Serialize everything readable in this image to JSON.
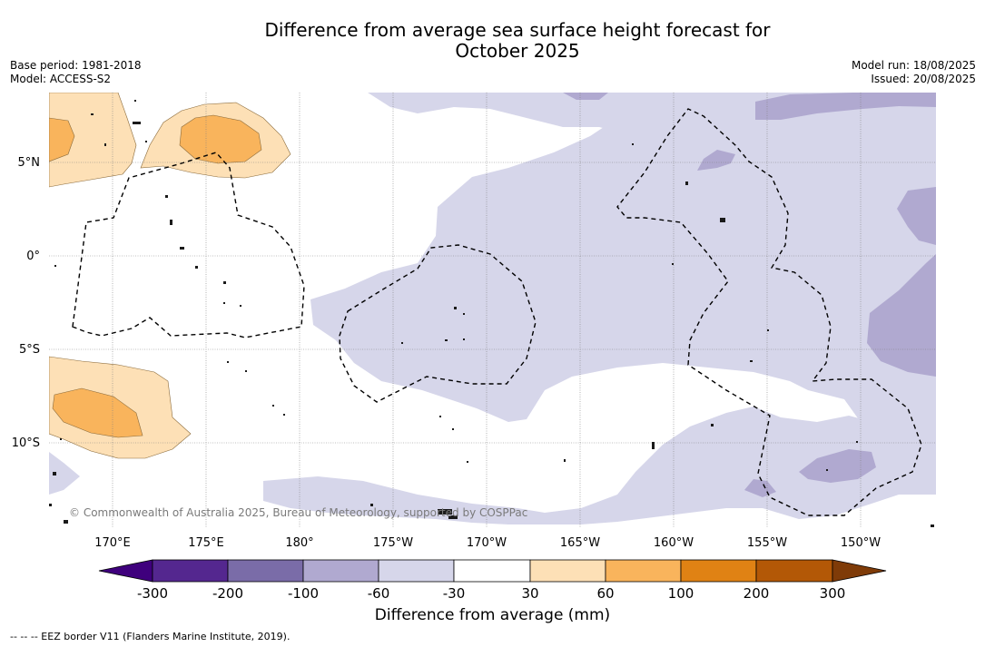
{
  "title_line1": "Difference from average sea surface height forecast for",
  "title_line2": "October 2025",
  "meta_left": {
    "base_period": "Base period: 1981-2018",
    "model": "Model: ACCESS-S2"
  },
  "meta_right": {
    "model_run": "Model run: 18/08/2025",
    "issued": "Issued: 20/08/2025"
  },
  "copyright": "© Commonwealth of Australia 2025, Bureau of Meteorology, supported by COSPPac",
  "map": {
    "lat_labels": [
      "5°N",
      "0°",
      "5°S",
      "10°S"
    ],
    "lon_labels": [
      "170°E",
      "175°E",
      "180°",
      "175°W",
      "170°W",
      "165°W",
      "160°W",
      "155°W",
      "150°W"
    ]
  },
  "colorbar": {
    "label": "Difference from average (mm)",
    "ticks": [
      "-300",
      "-200",
      "-100",
      "-60",
      "-30",
      "30",
      "60",
      "100",
      "200",
      "300"
    ],
    "colors": [
      "#3f007d",
      "#54278f",
      "#7a6ca8",
      "#b0a9d0",
      "#d6d6ea",
      "#ffffff",
      "#fde0b6",
      "#f9b45c",
      "#e08214",
      "#b35806",
      "#7f3b08"
    ]
  },
  "legend_note": "--  --  -- EEZ border V11 (Flanders Marine Institute, 2019)."
}
